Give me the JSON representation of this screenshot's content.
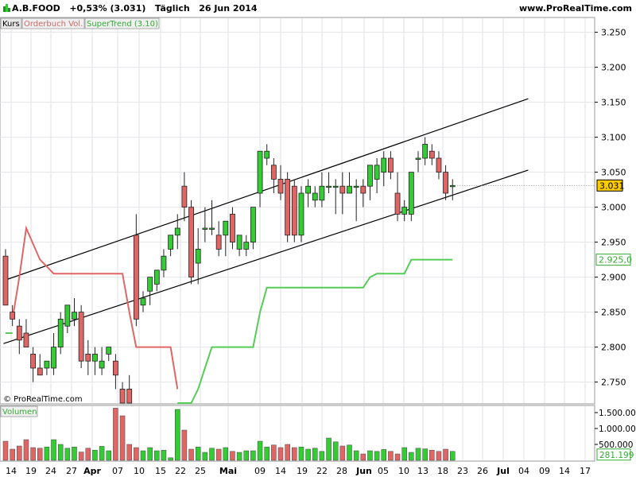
{
  "header": {
    "symbol": "A.B.FOOD",
    "change": "+0,53% (3.031)",
    "period": "Täglich",
    "date": "26 Jun 2014",
    "website": "www.ProRealTime.com"
  },
  "legend": {
    "kurs": "Kurs",
    "orderbuch": "Orderbuch Vol.",
    "supertrend": "SuperTrend (3.10)",
    "volumen": "Volumen"
  },
  "watermark": "© ProRealTime.com",
  "colors": {
    "up": "#33cc33",
    "down": "#e06666",
    "supertrend_up": "#55cc55",
    "supertrend_down": "#e06666",
    "channel": "#000000",
    "price_tag": "#ffcc00",
    "st_tag": "#33aa33",
    "vol_tag": "#33aa33"
  },
  "chart_data": [
    {
      "type": "candlestick",
      "x_tick_labels": [
        "14",
        "19",
        "24",
        "27",
        "Apr",
        "07",
        "10",
        "15",
        "22",
        "25",
        "Mai",
        "09",
        "14",
        "19",
        "22",
        "28",
        "Jun",
        "05",
        "10",
        "13",
        "18",
        "23",
        "26",
        "Jul",
        "04",
        "09",
        "14",
        "17"
      ],
      "y_ticks": [
        2.75,
        2.8,
        2.85,
        2.9,
        2.95,
        3.0,
        3.05,
        3.1,
        3.15,
        3.2,
        3.25
      ],
      "y_tick_labels": [
        "2.750",
        "2.800",
        "2.850",
        "2.900",
        "2.950",
        "3.000",
        "3.050",
        "3.100",
        "3.150",
        "3.200",
        "3.250"
      ],
      "ylim": [
        2.72,
        3.27
      ],
      "current_price": "3.031",
      "supertrend_value": "2.925,0",
      "candles": [
        {
          "o": 2.93,
          "h": 2.94,
          "l": 2.86,
          "c": 2.86
        },
        {
          "o": 2.85,
          "h": 2.86,
          "l": 2.83,
          "c": 2.84
        },
        {
          "o": 2.83,
          "h": 2.84,
          "l": 2.79,
          "c": 2.81
        },
        {
          "o": 2.82,
          "h": 2.84,
          "l": 2.8,
          "c": 2.8
        },
        {
          "o": 2.79,
          "h": 2.8,
          "l": 2.75,
          "c": 2.77
        },
        {
          "o": 2.77,
          "h": 2.79,
          "l": 2.76,
          "c": 2.76
        },
        {
          "o": 2.77,
          "h": 2.78,
          "l": 2.76,
          "c": 2.78
        },
        {
          "o": 2.77,
          "h": 2.82,
          "l": 2.76,
          "c": 2.8
        },
        {
          "o": 2.8,
          "h": 2.85,
          "l": 2.79,
          "c": 2.84
        },
        {
          "o": 2.83,
          "h": 2.86,
          "l": 2.82,
          "c": 2.86
        },
        {
          "o": 2.84,
          "h": 2.87,
          "l": 2.83,
          "c": 2.85
        },
        {
          "o": 2.85,
          "h": 2.86,
          "l": 2.77,
          "c": 2.78
        },
        {
          "o": 2.79,
          "h": 2.81,
          "l": 2.76,
          "c": 2.78
        },
        {
          "o": 2.78,
          "h": 2.8,
          "l": 2.76,
          "c": 2.79
        },
        {
          "o": 2.77,
          "h": 2.8,
          "l": 2.76,
          "c": 2.78
        },
        {
          "o": 2.79,
          "h": 2.8,
          "l": 2.78,
          "c": 2.8
        },
        {
          "o": 2.78,
          "h": 2.79,
          "l": 2.74,
          "c": 2.76
        },
        {
          "o": 2.74,
          "h": 2.75,
          "l": 2.72,
          "c": 2.72
        },
        {
          "o": 2.74,
          "h": 2.76,
          "l": 2.72,
          "c": 2.72
        },
        {
          "o": 2.96,
          "h": 2.99,
          "l": 2.83,
          "c": 2.84
        },
        {
          "o": 2.86,
          "h": 2.88,
          "l": 2.85,
          "c": 2.87
        },
        {
          "o": 2.88,
          "h": 2.9,
          "l": 2.86,
          "c": 2.9
        },
        {
          "o": 2.89,
          "h": 2.91,
          "l": 2.88,
          "c": 2.91
        },
        {
          "o": 2.91,
          "h": 2.94,
          "l": 2.9,
          "c": 2.93
        },
        {
          "o": 2.94,
          "h": 2.96,
          "l": 2.93,
          "c": 2.96
        },
        {
          "o": 2.96,
          "h": 2.99,
          "l": 2.94,
          "c": 2.97
        },
        {
          "o": 3.03,
          "h": 3.05,
          "l": 2.98,
          "c": 3.0
        },
        {
          "o": 3.0,
          "h": 3.01,
          "l": 2.89,
          "c": 2.9
        },
        {
          "o": 2.92,
          "h": 2.97,
          "l": 2.89,
          "c": 2.94
        },
        {
          "o": 2.97,
          "h": 3.0,
          "l": 2.95,
          "c": 2.97
        },
        {
          "o": 2.97,
          "h": 3.01,
          "l": 2.96,
          "c": 2.97
        },
        {
          "o": 2.96,
          "h": 2.98,
          "l": 2.93,
          "c": 2.94
        },
        {
          "o": 2.96,
          "h": 2.98,
          "l": 2.93,
          "c": 2.98
        },
        {
          "o": 2.99,
          "h": 3.0,
          "l": 2.94,
          "c": 2.95
        },
        {
          "o": 2.94,
          "h": 2.96,
          "l": 2.93,
          "c": 2.96
        },
        {
          "o": 2.94,
          "h": 2.96,
          "l": 2.93,
          "c": 2.95
        },
        {
          "o": 2.95,
          "h": 3.0,
          "l": 2.94,
          "c": 3.0
        },
        {
          "o": 3.02,
          "h": 3.08,
          "l": 3.0,
          "c": 3.08
        },
        {
          "o": 3.07,
          "h": 3.09,
          "l": 3.06,
          "c": 3.08
        },
        {
          "o": 3.06,
          "h": 3.07,
          "l": 3.02,
          "c": 3.04
        },
        {
          "o": 3.04,
          "h": 3.06,
          "l": 3.01,
          "c": 3.02
        },
        {
          "o": 3.04,
          "h": 3.05,
          "l": 2.95,
          "c": 2.96
        },
        {
          "o": 3.03,
          "h": 3.04,
          "l": 2.95,
          "c": 2.96
        },
        {
          "o": 2.96,
          "h": 3.03,
          "l": 2.95,
          "c": 3.02
        },
        {
          "o": 3.02,
          "h": 3.04,
          "l": 3.0,
          "c": 3.03
        },
        {
          "o": 3.01,
          "h": 3.03,
          "l": 3.0,
          "c": 3.02
        },
        {
          "o": 3.01,
          "h": 3.05,
          "l": 3.0,
          "c": 3.03
        },
        {
          "o": 3.03,
          "h": 3.05,
          "l": 3.02,
          "c": 3.03
        },
        {
          "o": 3.03,
          "h": 3.04,
          "l": 2.99,
          "c": 3.03
        },
        {
          "o": 3.03,
          "h": 3.05,
          "l": 2.99,
          "c": 3.02
        },
        {
          "o": 3.02,
          "h": 3.05,
          "l": 3.02,
          "c": 3.03
        },
        {
          "o": 3.03,
          "h": 3.04,
          "l": 2.98,
          "c": 3.03
        },
        {
          "o": 3.03,
          "h": 3.04,
          "l": 3.0,
          "c": 3.02
        },
        {
          "o": 3.03,
          "h": 3.06,
          "l": 3.01,
          "c": 3.06
        },
        {
          "o": 3.04,
          "h": 3.07,
          "l": 3.02,
          "c": 3.06
        },
        {
          "o": 3.05,
          "h": 3.08,
          "l": 3.03,
          "c": 3.07
        },
        {
          "o": 3.07,
          "h": 3.08,
          "l": 3.04,
          "c": 3.05
        },
        {
          "o": 3.02,
          "h": 3.05,
          "l": 2.98,
          "c": 2.99
        },
        {
          "o": 2.99,
          "h": 3.01,
          "l": 2.98,
          "c": 3.0
        },
        {
          "o": 2.99,
          "h": 3.05,
          "l": 2.98,
          "c": 3.05
        },
        {
          "o": 3.07,
          "h": 3.08,
          "l": 3.05,
          "c": 3.07
        },
        {
          "o": 3.07,
          "h": 3.1,
          "l": 3.06,
          "c": 3.09
        },
        {
          "o": 3.08,
          "h": 3.09,
          "l": 3.06,
          "c": 3.07
        },
        {
          "o": 3.07,
          "h": 3.08,
          "l": 3.04,
          "c": 3.05
        },
        {
          "o": 3.05,
          "h": 3.06,
          "l": 3.01,
          "c": 3.02
        },
        {
          "o": 3.03,
          "h": 3.04,
          "l": 3.01,
          "c": 3.031
        }
      ],
      "supertrend": [
        {
          "i": 0,
          "v": 2.82,
          "d": "up"
        },
        {
          "i": 1,
          "v": 2.82,
          "d": "up"
        },
        {
          "i": 1,
          "v": 2.84,
          "d": "down"
        },
        {
          "i": 2,
          "v": 2.9,
          "d": "down"
        },
        {
          "i": 3,
          "v": 2.97,
          "d": "down"
        },
        {
          "i": 5,
          "v": 2.925,
          "d": "down"
        },
        {
          "i": 7,
          "v": 2.905,
          "d": "down"
        },
        {
          "i": 12,
          "v": 2.905,
          "d": "down"
        },
        {
          "i": 17,
          "v": 2.905,
          "d": "down"
        },
        {
          "i": 18,
          "v": 2.85,
          "d": "down"
        },
        {
          "i": 19,
          "v": 2.8,
          "d": "down"
        },
        {
          "i": 23,
          "v": 2.8,
          "d": "down"
        },
        {
          "i": 24,
          "v": 2.8,
          "d": "down"
        },
        {
          "i": 25,
          "v": 2.74,
          "d": "down"
        },
        {
          "i": 25,
          "v": 2.72,
          "d": "up"
        },
        {
          "i": 27,
          "v": 2.72,
          "d": "up"
        },
        {
          "i": 28,
          "v": 2.74,
          "d": "up"
        },
        {
          "i": 30,
          "v": 2.8,
          "d": "up"
        },
        {
          "i": 36,
          "v": 2.8,
          "d": "up"
        },
        {
          "i": 37,
          "v": 2.85,
          "d": "up"
        },
        {
          "i": 38,
          "v": 2.885,
          "d": "up"
        },
        {
          "i": 44,
          "v": 2.885,
          "d": "up"
        },
        {
          "i": 52,
          "v": 2.885,
          "d": "up"
        },
        {
          "i": 53,
          "v": 2.9,
          "d": "up"
        },
        {
          "i": 54,
          "v": 2.905,
          "d": "up"
        },
        {
          "i": 58,
          "v": 2.905,
          "d": "up"
        },
        {
          "i": 59,
          "v": 2.925,
          "d": "up"
        },
        {
          "i": 65,
          "v": 2.925,
          "d": "up"
        }
      ],
      "channel": {
        "upper": [
          {
            "i": -0.3,
            "v": 2.895
          },
          {
            "i": 76,
            "v": 3.155
          }
        ],
        "lower": [
          {
            "i": -0.3,
            "v": 2.805
          },
          {
            "i": 76,
            "v": 3.053
          }
        ]
      },
      "volume": {
        "ylim": [
          0,
          1700000
        ],
        "y_ticks": [
          500000,
          1000000,
          1500000
        ],
        "y_tick_labels": [
          "500.000",
          "1.000.000",
          "1.500.000"
        ],
        "current_label": "281.199",
        "values": [
          600000,
          350000,
          450000,
          650000,
          400000,
          380000,
          420000,
          650000,
          500000,
          380000,
          420000,
          260000,
          380000,
          320000,
          440000,
          300000,
          1640000,
          1400000,
          500000,
          400000,
          300000,
          400000,
          300000,
          320000,
          80000,
          1600000,
          950000,
          350000,
          420000,
          250000,
          380000,
          350000,
          400000,
          280000,
          250000,
          300000,
          300000,
          600000,
          420000,
          480000,
          400000,
          500000,
          400000,
          420000,
          350000,
          380000,
          280000,
          700000,
          580000,
          450000,
          480000,
          300000,
          200000,
          300000,
          280000,
          340000,
          280000,
          200000,
          400000,
          250000,
          380000,
          360000,
          320000,
          280000,
          350000,
          281199
        ]
      }
    }
  ]
}
